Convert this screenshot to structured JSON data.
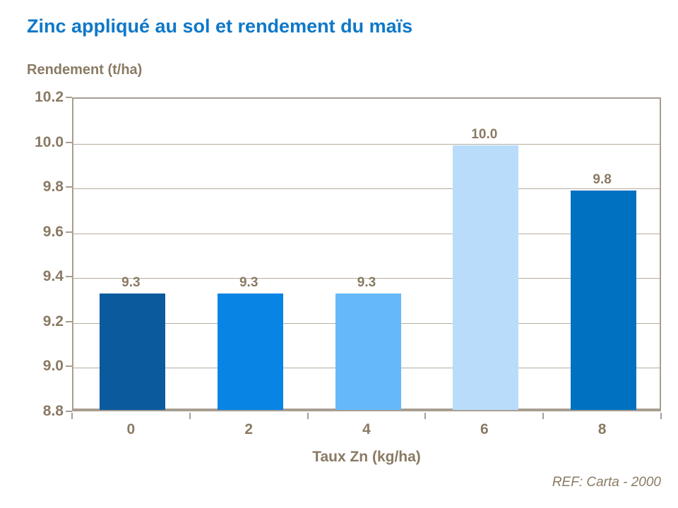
{
  "title": "Zinc appliqué au sol et rendement du maïs",
  "source": "REF: Carta - 2000",
  "colors": {
    "title_text": "#0E78C8",
    "axis_text": "#8A7A64",
    "plot_border": "#A89E90",
    "gridline": "#B5AC9F"
  },
  "chart_data": {
    "type": "bar",
    "title": "Zinc appliqué au sol et rendement du maïs",
    "xlabel": "Taux Zn (kg/ha)",
    "ylabel": "Rendement (t/ha)",
    "categories": [
      "0",
      "2",
      "4",
      "6",
      "8"
    ],
    "values": [
      9.32,
      9.32,
      9.32,
      9.98,
      9.78
    ],
    "labels": [
      "9.3",
      "9.3",
      "9.3",
      "10.0",
      "9.8"
    ],
    "bar_colors": [
      "#0B5A9D",
      "#0884E4",
      "#65B9FB",
      "#B9DCFB",
      "#0071C1"
    ],
    "ylim": [
      8.8,
      10.2
    ],
    "ytick_step": 0.2,
    "ytick_labels": [
      "8.8",
      "9.0",
      "9.2",
      "9.4",
      "9.6",
      "9.8",
      "10.0",
      "10.2"
    ],
    "grid": true,
    "legend": false
  }
}
